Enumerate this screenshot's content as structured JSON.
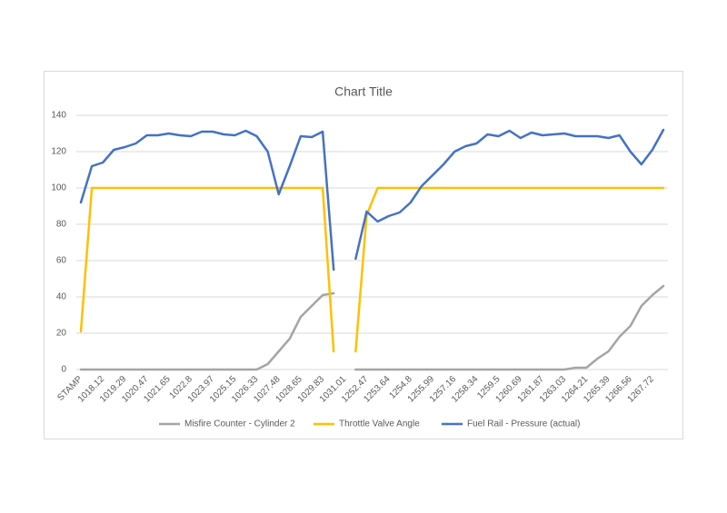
{
  "chart_data": {
    "type": "line",
    "title": "Chart Title",
    "categories": [
      "STAMP",
      null,
      "1018.12",
      null,
      "1019.29",
      null,
      "1020.47",
      null,
      "1021.65",
      null,
      "1022.8",
      null,
      "1023.97",
      null,
      "1025.15",
      null,
      "1026.33",
      null,
      "1027.48",
      null,
      "1028.65",
      null,
      "1029.83",
      null,
      "1031.01",
      null,
      "1252.47",
      null,
      "1253.64",
      null,
      "1254.8",
      null,
      "1255.99",
      null,
      "1257.16",
      null,
      "1258.34",
      null,
      "1259.5",
      null,
      "1260.69",
      null,
      "1261.87",
      null,
      "1263.03",
      null,
      "1264.21",
      null,
      "1265.39",
      null,
      "1266.56",
      null,
      "1267.72",
      null
    ],
    "series": [
      {
        "name": "Misfire Counter - Cylinder 2",
        "color": "#a5a5a5",
        "values": [
          0,
          0,
          0,
          0,
          0,
          0,
          0,
          0,
          0,
          0,
          0,
          0,
          0,
          0,
          0,
          0,
          0,
          3,
          10,
          17,
          29,
          35,
          41,
          42,
          null,
          0,
          0,
          0,
          0,
          0,
          0,
          0,
          0,
          0,
          0,
          0,
          0,
          0,
          0,
          0,
          0,
          0,
          0,
          0,
          0,
          1,
          1,
          6,
          10,
          18,
          24,
          35,
          41,
          46
        ]
      },
      {
        "name": "Throttle Valve Angle",
        "color": "#ffc000",
        "values": [
          21,
          100,
          100,
          100,
          100,
          100,
          100,
          100,
          100,
          100,
          100,
          100,
          100,
          100,
          100,
          100,
          100,
          100,
          100,
          100,
          100,
          100,
          100,
          10,
          null,
          10,
          85,
          100,
          100,
          100,
          100,
          100,
          100,
          100,
          100,
          100,
          100,
          100,
          100,
          100,
          100,
          100,
          100,
          100,
          100,
          100,
          100,
          100,
          100,
          100,
          100,
          100,
          100,
          100
        ]
      },
      {
        "name": "Fuel Rail - Pressure (actual)",
        "color": "#4472c4",
        "values": [
          92,
          112,
          114,
          121,
          122.5,
          124.5,
          129,
          129,
          130,
          129,
          128.5,
          131,
          131,
          129.5,
          129,
          131.5,
          128.5,
          120,
          96.5,
          112,
          128.5,
          128,
          131,
          55,
          null,
          61,
          87,
          81.5,
          84.5,
          86.5,
          92,
          101,
          107,
          113,
          120,
          123,
          124.5,
          129.5,
          128.5,
          131.5,
          127.5,
          130.5,
          129,
          129.5,
          130,
          128.5,
          128.5,
          128.5,
          127.5,
          129,
          120,
          113,
          121,
          132
        ]
      }
    ],
    "ylim": [
      0,
      140
    ],
    "yticks": [
      0,
      20,
      40,
      60,
      80,
      100,
      120,
      140
    ],
    "grid": true,
    "legend": "bottom"
  }
}
